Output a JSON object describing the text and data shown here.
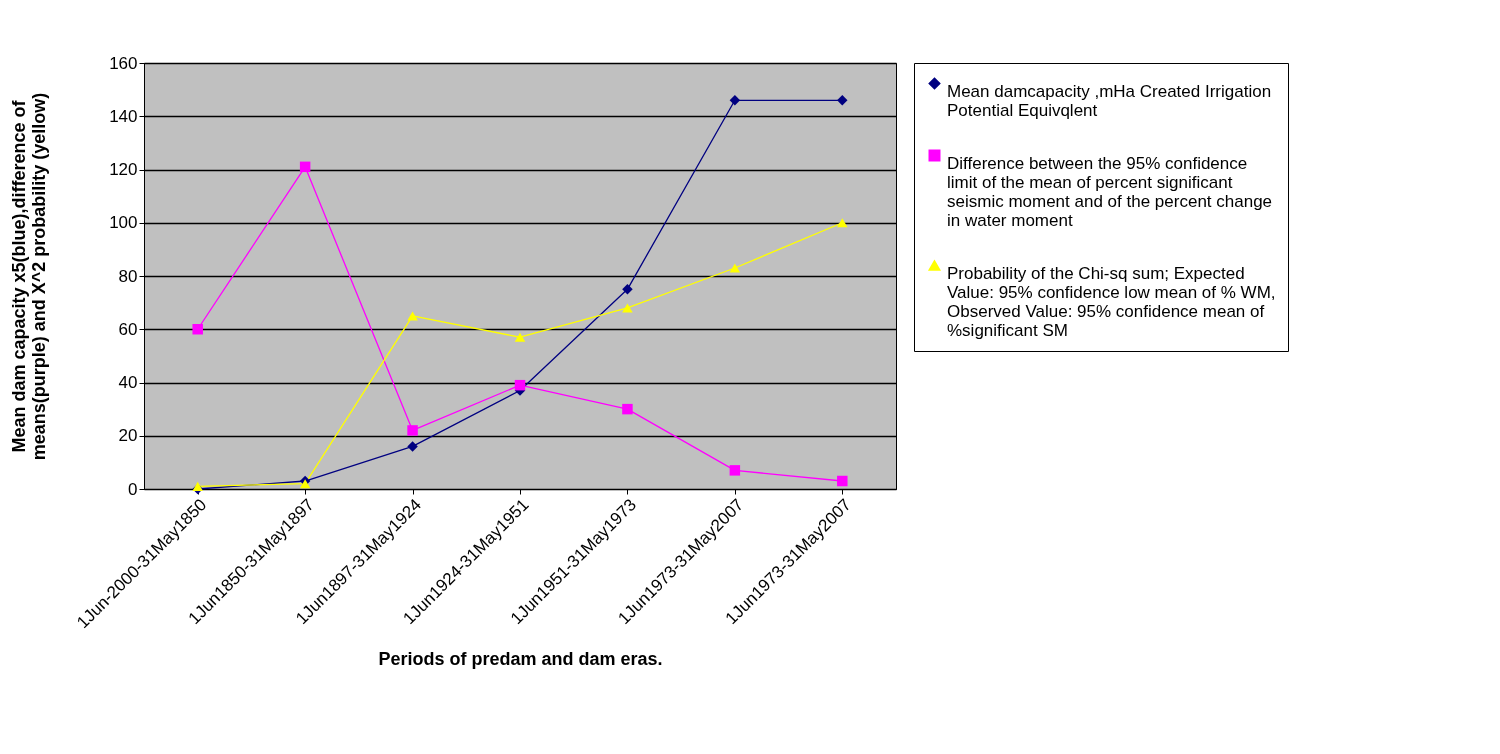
{
  "chart_data": {
    "type": "line",
    "xlabel": "Periods of predam and dam eras.",
    "ylabel": "Mean dam capacity x5(blue),difference of means(purple) and X^2 probability (yellow)",
    "categories": [
      "1Jun-2000-31May1850",
      "1Jun1850-31May1897",
      "1Jun1897-31May1924",
      "1Jun1924-31May1951",
      "1Jun1951-31May1973",
      "1Jun1973-31May2007",
      "1Jun1973-31May2007"
    ],
    "series": [
      {
        "name": "Mean damcapacity ,mHa Created Irrigation Potential Equivqlent",
        "color": "#000080",
        "marker": "diamond",
        "values": [
          0,
          3,
          16,
          37,
          75,
          146,
          146
        ]
      },
      {
        "name": "Difference between the 95% confidence limit of the mean of percent significant seismic moment and of the percent change in water moment",
        "color": "#ff00ff",
        "marker": "square",
        "values": [
          60,
          121,
          22,
          39,
          30,
          7,
          3
        ]
      },
      {
        "name": "Probability of the Chi-sq sum; Expected Value: 95% confidence low mean of % WM, Observed Value: 95% confidence mean of %significant SM",
        "color": "#ffff00",
        "marker": "triangle",
        "values": [
          1,
          2,
          65,
          57,
          68,
          83,
          100
        ]
      }
    ],
    "ylim": [
      0,
      160
    ],
    "yticks": [
      0,
      20,
      40,
      60,
      80,
      100,
      120,
      140,
      160
    ],
    "grid": "y",
    "legend": "right"
  }
}
